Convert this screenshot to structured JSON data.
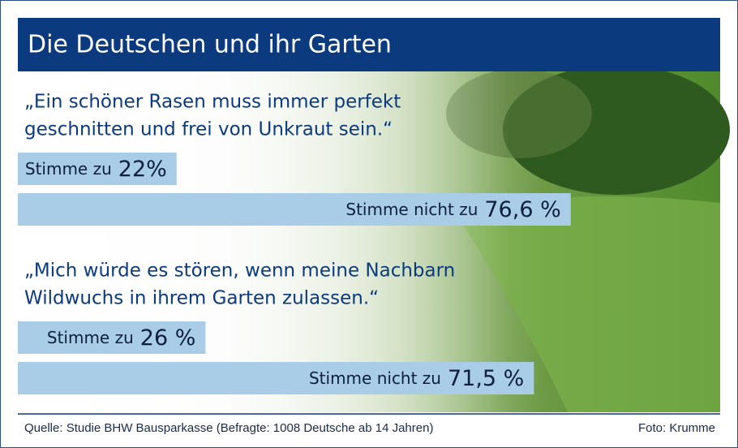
{
  "header": {
    "title": "Die Deutschen und ihr Garten"
  },
  "chart_data": [
    {
      "type": "bar",
      "orientation": "horizontal",
      "title": [
        "„Ein schöner Rasen muss immer perfekt",
        "geschnitten und frei von Unkraut sein.“"
      ],
      "categories": [
        "Stimme zu",
        "Stimme nicht zu"
      ],
      "values": [
        22,
        76.6
      ],
      "value_labels": [
        "22%",
        "76,6 %"
      ],
      "color": "#a9cde6"
    },
    {
      "type": "bar",
      "orientation": "horizontal",
      "title": [
        "„Mich würde es stören, wenn meine Nachbarn",
        "Wildwuchs in ihrem Garten zulassen.“"
      ],
      "categories": [
        "Stimme zu",
        "Stimme nicht zu"
      ],
      "values": [
        26,
        71.5
      ],
      "value_labels": [
        "26 %",
        "71,5 %"
      ],
      "color": "#a9cde6"
    }
  ],
  "footer": {
    "source": "Quelle: Studie BHW Bausparkasse (Befragte: 1008 Deutsche ab 14 Jahren)",
    "credit": "Foto: Krumme"
  }
}
